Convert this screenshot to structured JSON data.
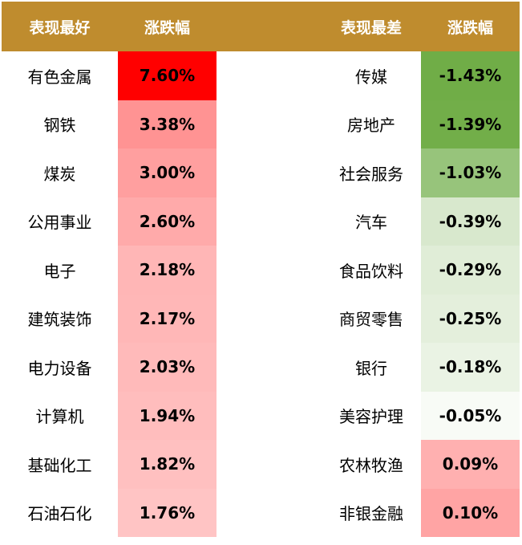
{
  "header": {
    "best_label": "表现最好",
    "best_change_label": "涨跌幅",
    "worst_label": "表现最差",
    "worst_change_label": "涨跌幅"
  },
  "colors": {
    "header_bg": "#bf8c2e",
    "header_text": "#ffffff"
  },
  "best": [
    {
      "name": "有色金属",
      "change": "7.60%",
      "color": "#ff0000"
    },
    {
      "name": "钢铁",
      "change": "3.38%",
      "color": "#ff9393"
    },
    {
      "name": "煤炭",
      "change": "3.00%",
      "color": "#ff9f9f"
    },
    {
      "name": "公用事业",
      "change": "2.60%",
      "color": "#ffaaaa"
    },
    {
      "name": "电子",
      "change": "2.18%",
      "color": "#ffb6b6"
    },
    {
      "name": "建筑装饰",
      "change": "2.17%",
      "color": "#ffb7b7"
    },
    {
      "name": "电力设备",
      "change": "2.03%",
      "color": "#ffbaba"
    },
    {
      "name": "计算机",
      "change": "1.94%",
      "color": "#ffbdbd"
    },
    {
      "name": "基础化工",
      "change": "1.82%",
      "color": "#ffc0c0"
    },
    {
      "name": "石油石化",
      "change": "1.76%",
      "color": "#ffc4c4"
    }
  ],
  "worst": [
    {
      "name": "传媒",
      "change": "-1.43%",
      "color": "#70ad47"
    },
    {
      "name": "房地产",
      "change": "-1.39%",
      "color": "#72ae49"
    },
    {
      "name": "社会服务",
      "change": "-1.03%",
      "color": "#97c47b"
    },
    {
      "name": "汽车",
      "change": "-0.39%",
      "color": "#d8e8cd"
    },
    {
      "name": "食品饮料",
      "change": "-0.29%",
      "color": "#e0edd7"
    },
    {
      "name": "商贸零售",
      "change": "-0.25%",
      "color": "#e4efdc"
    },
    {
      "name": "银行",
      "change": "-0.18%",
      "color": "#eaf3e4"
    },
    {
      "name": "美容护理",
      "change": "-0.05%",
      "color": "#f8fbf6"
    },
    {
      "name": "农林牧渔",
      "change": "0.09%",
      "color": "#ffb0b0"
    },
    {
      "name": "非银金融",
      "change": "0.10%",
      "color": "#ffa4a4"
    }
  ]
}
